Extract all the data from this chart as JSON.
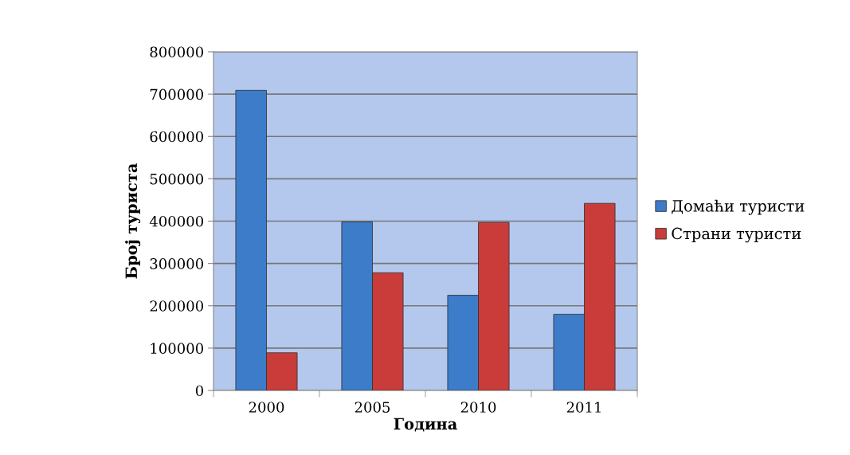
{
  "chart_data": {
    "type": "bar",
    "xlabel": "Година",
    "ylabel": "Број туриста",
    "categories": [
      "2000",
      "2005",
      "2010",
      "2011"
    ],
    "series": [
      {
        "name": "Домаћи туристи",
        "color": "#3d7cc9",
        "values": [
          709000,
          398000,
          225000,
          180000
        ]
      },
      {
        "name": "Страни туристи",
        "color": "#c93c3a",
        "values": [
          89000,
          278000,
          397000,
          442000
        ]
      }
    ],
    "ylim": [
      0,
      800000
    ],
    "yticks": [
      0,
      100000,
      200000,
      300000,
      400000,
      500000,
      600000,
      700000,
      800000
    ],
    "grid": "y",
    "legend": "right"
  }
}
